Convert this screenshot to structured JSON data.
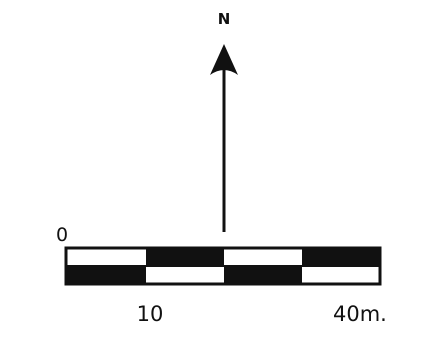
{
  "north_arrow": {
    "label": "N"
  },
  "scale_bar": {
    "start_label": "0",
    "mid_label": "10",
    "end_label": "40m.",
    "segments": 4,
    "rows": 2
  },
  "colors": {
    "ink": "#111111",
    "paper": "#ffffff"
  }
}
